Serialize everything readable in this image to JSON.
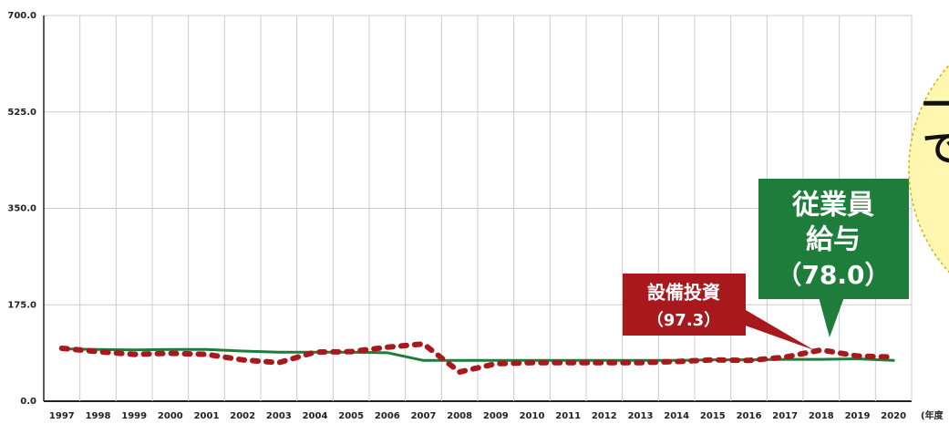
{
  "chart_data": {
    "type": "line",
    "categories": [
      "1997",
      "1998",
      "1999",
      "2000",
      "2001",
      "2002",
      "2003",
      "2004",
      "2005",
      "2006",
      "2007",
      "2008",
      "2009",
      "2010",
      "2011",
      "2012",
      "2013",
      "2014",
      "2015",
      "2016",
      "2017",
      "2018",
      "2019",
      "2020"
    ],
    "series": [
      {
        "name": "従業員給与",
        "color": "#1e7d3a",
        "values": [
          95,
          94,
          93,
          94,
          94,
          91,
          89,
          89,
          89,
          88,
          74,
          74,
          74,
          74,
          74,
          74,
          74,
          74,
          75,
          75,
          76,
          76,
          77,
          74
        ]
      },
      {
        "name": "設備投資",
        "color": "#a8191e",
        "values": [
          96,
          90,
          85,
          87,
          85,
          75,
          70,
          89,
          90,
          98,
          104,
          53,
          68,
          70,
          70,
          70,
          70,
          72,
          75,
          74,
          80,
          93,
          82,
          80
        ]
      }
    ],
    "ylim": [
      0,
      700
    ],
    "yticks": [
      {
        "value": 0,
        "label": "0.0"
      },
      {
        "value": 175,
        "label": "175.0"
      },
      {
        "value": 350,
        "label": "350.0"
      },
      {
        "value": 525,
        "label": "525.0"
      },
      {
        "value": 700,
        "label": "700.0"
      }
    ],
    "x_unit": "(年度",
    "grid": true,
    "annotations": {
      "capex_title": "設備投資",
      "capex_value": "（97.3）",
      "pay_title_1": "従業員",
      "pay_title_2": "給与",
      "pay_value": "（78.0）",
      "bubble_1": "一",
      "bubble_2": "で"
    }
  }
}
